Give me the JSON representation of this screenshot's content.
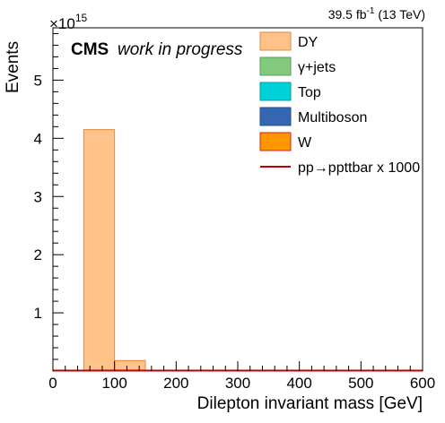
{
  "chart_data": {
    "type": "bar",
    "title": "",
    "xlabel": "Dilepton invariant mass [GeV]",
    "ylabel": "Events",
    "y_multiplier": "×10",
    "y_exponent": "15",
    "xlim": [
      0,
      600
    ],
    "ylim": [
      0,
      5.9
    ],
    "x_ticks": [
      0,
      100,
      200,
      300,
      400,
      500,
      600
    ],
    "x_tick_labels": [
      "0",
      "100",
      "200",
      "300",
      "400",
      "500",
      "600"
    ],
    "y_ticks": [
      1,
      2,
      3,
      4,
      5
    ],
    "y_tick_labels": [
      "1",
      "2",
      "3",
      "4",
      "5"
    ],
    "bin_width": 50,
    "bins": [
      {
        "x_low": 50,
        "x_high": 100,
        "value": 4.15
      },
      {
        "x_low": 100,
        "x_high": 150,
        "value": 0.18
      },
      {
        "x_low": 150,
        "x_high": 200,
        "value": 0.005
      },
      {
        "x_low": 200,
        "x_high": 250,
        "value": 0.002
      }
    ],
    "legend_position": "top-right",
    "legend": [
      {
        "label": "DY",
        "kind": "box",
        "fill": "#ffc38a",
        "stroke": "#e08a3a"
      },
      {
        "label": "γ+jets",
        "kind": "box",
        "fill": "#82c97e",
        "stroke": "#5aa157"
      },
      {
        "label": "Top",
        "kind": "box",
        "fill": "#00d0d8",
        "stroke": "#00a0a8"
      },
      {
        "label": "Multiboson",
        "kind": "box",
        "fill": "#3466b3",
        "stroke": "#24508f"
      },
      {
        "label": "W",
        "kind": "box",
        "fill": "#ff9800",
        "stroke": "#d42020"
      },
      {
        "label": "pp→ppttbar x 1000",
        "kind": "line",
        "stroke": "#c00000"
      }
    ],
    "signal_line_color": "#c00000",
    "histogram_fill": "#ffc38a",
    "histogram_stroke": "#e08a3a",
    "annotations": {
      "cms": "CMS",
      "work_in_progress": "work in progress",
      "lumi_value": "39.5 fb",
      "lumi_exp": "-1",
      "lumi_energy": " (13 TeV)"
    },
    "grid": false
  }
}
